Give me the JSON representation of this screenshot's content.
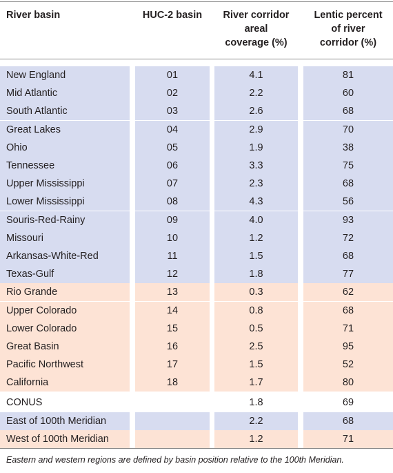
{
  "table": {
    "headers": [
      [
        "River basin"
      ],
      [
        "HUC-2 basin"
      ],
      [
        "River corridor",
        "areal",
        "coverage (%)"
      ],
      [
        "Lentic percent",
        "of river",
        "corridor (%)"
      ]
    ],
    "rows": [
      {
        "basin": "New England",
        "huc": "01",
        "coverage": "4.1",
        "lentic": "81",
        "region": "east"
      },
      {
        "basin": "Mid Atlantic",
        "huc": "02",
        "coverage": "2.2",
        "lentic": "60",
        "region": "east"
      },
      {
        "basin": "South Atlantic",
        "huc": "03",
        "coverage": "2.6",
        "lentic": "68",
        "region": "east"
      },
      {
        "basin": "Great Lakes",
        "huc": "04",
        "coverage": "2.9",
        "lentic": "70",
        "region": "east"
      },
      {
        "basin": "Ohio",
        "huc": "05",
        "coverage": "1.9",
        "lentic": "38",
        "region": "east"
      },
      {
        "basin": "Tennessee",
        "huc": "06",
        "coverage": "3.3",
        "lentic": "75",
        "region": "east"
      },
      {
        "basin": "Upper Mississippi",
        "huc": "07",
        "coverage": "2.3",
        "lentic": "68",
        "region": "east"
      },
      {
        "basin": "Lower Mississippi",
        "huc": "08",
        "coverage": "4.3",
        "lentic": "56",
        "region": "east"
      },
      {
        "basin": "Souris-Red-Rainy",
        "huc": "09",
        "coverage": "4.0",
        "lentic": "93",
        "region": "east"
      },
      {
        "basin": "Missouri",
        "huc": "10",
        "coverage": "1.2",
        "lentic": "72",
        "region": "east"
      },
      {
        "basin": "Arkansas-White-Red",
        "huc": "11",
        "coverage": "1.5",
        "lentic": "68",
        "region": "east"
      },
      {
        "basin": "Texas-Gulf",
        "huc": "12",
        "coverage": "1.8",
        "lentic": "77",
        "region": "east"
      },
      {
        "basin": "Rio Grande",
        "huc": "13",
        "coverage": "0.3",
        "lentic": "62",
        "region": "west"
      },
      {
        "basin": "Upper Colorado",
        "huc": "14",
        "coverage": "0.8",
        "lentic": "68",
        "region": "west"
      },
      {
        "basin": "Lower Colorado",
        "huc": "15",
        "coverage": "0.5",
        "lentic": "71",
        "region": "west"
      },
      {
        "basin": "Great Basin",
        "huc": "16",
        "coverage": "2.5",
        "lentic": "95",
        "region": "west"
      },
      {
        "basin": "Pacific Northwest",
        "huc": "17",
        "coverage": "1.5",
        "lentic": "52",
        "region": "west"
      },
      {
        "basin": "California",
        "huc": "18",
        "coverage": "1.7",
        "lentic": "80",
        "region": "west"
      },
      {
        "basin": "CONUS",
        "huc": "",
        "coverage": "1.8",
        "lentic": "69",
        "region": "none"
      },
      {
        "basin": "East of 100th Meridian",
        "huc": "",
        "coverage": "2.2",
        "lentic": "68",
        "region": "east"
      },
      {
        "basin": "West of 100th Meridian",
        "huc": "",
        "coverage": "1.2",
        "lentic": "71",
        "region": "west"
      }
    ],
    "footnote": "Eastern and western regions are defined by basin position relative to the 100th Meridian."
  },
  "colors": {
    "east": "#d7dcf0",
    "west": "#fde3d5"
  }
}
